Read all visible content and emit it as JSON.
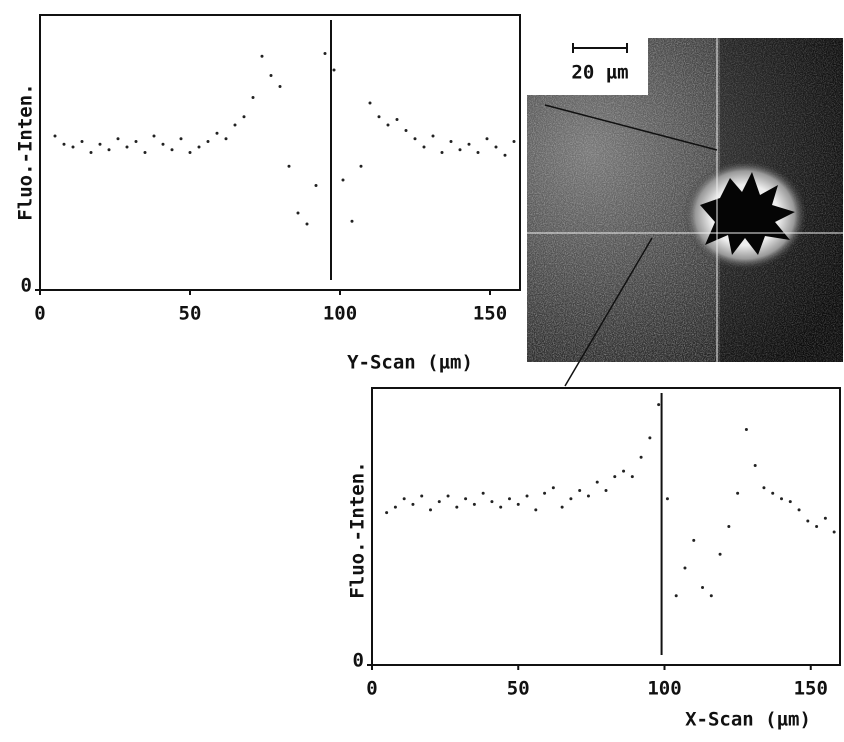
{
  "chart_data": [
    {
      "type": "scatter",
      "y_label": "Fluo.-Inten.",
      "x_label": "Y-Scan (µm)",
      "xlim": [
        0,
        160
      ],
      "ylim": [
        0,
        100
      ],
      "xticks": [
        0,
        50,
        100,
        150
      ],
      "yticks": [
        0
      ],
      "vline": 97,
      "color": "#222222",
      "x": [
        5,
        8,
        11,
        14,
        17,
        20,
        23,
        26,
        29,
        32,
        35,
        38,
        41,
        44,
        47,
        50,
        53,
        56,
        59,
        62,
        65,
        68,
        71,
        74,
        77,
        80,
        83,
        86,
        89,
        92,
        95,
        98,
        101,
        104,
        107,
        110,
        113,
        116,
        119,
        122,
        125,
        128,
        131,
        134,
        137,
        140,
        143,
        146,
        149,
        152,
        155,
        158
      ],
      "values": [
        56,
        53,
        52,
        54,
        50,
        53,
        51,
        55,
        52,
        54,
        50,
        56,
        53,
        51,
        55,
        50,
        52,
        54,
        57,
        55,
        60,
        63,
        70,
        85,
        78,
        74,
        45,
        28,
        24,
        38,
        86,
        80,
        40,
        25,
        45,
        68,
        63,
        60,
        62,
        58,
        55,
        52,
        56,
        50,
        54,
        51,
        53,
        50,
        55,
        52,
        49,
        54
      ]
    },
    {
      "type": "scatter",
      "y_label": "Fluo.-Inten.",
      "x_label": "X-Scan (µm)",
      "xlim": [
        0,
        160
      ],
      "ylim": [
        0,
        100
      ],
      "xticks": [
        0,
        50,
        100,
        150
      ],
      "yticks": [
        0
      ],
      "vline": 99,
      "color": "#222222",
      "x": [
        5,
        8,
        11,
        14,
        17,
        20,
        23,
        26,
        29,
        32,
        35,
        38,
        41,
        44,
        47,
        50,
        53,
        56,
        59,
        62,
        65,
        68,
        71,
        74,
        77,
        80,
        83,
        86,
        89,
        92,
        95,
        98,
        101,
        104,
        107,
        110,
        113,
        116,
        119,
        122,
        125,
        128,
        131,
        134,
        137,
        140,
        143,
        146,
        149,
        152,
        155,
        158
      ],
      "values": [
        55,
        57,
        60,
        58,
        61,
        56,
        59,
        61,
        57,
        60,
        58,
        62,
        59,
        57,
        60,
        58,
        61,
        56,
        62,
        64,
        57,
        60,
        63,
        61,
        66,
        63,
        68,
        70,
        68,
        75,
        82,
        94,
        60,
        25,
        35,
        45,
        28,
        25,
        40,
        50,
        62,
        85,
        72,
        64,
        62,
        60,
        59,
        56,
        52,
        50,
        53,
        48
      ]
    }
  ],
  "image": {
    "scale_label": "20 µm"
  }
}
